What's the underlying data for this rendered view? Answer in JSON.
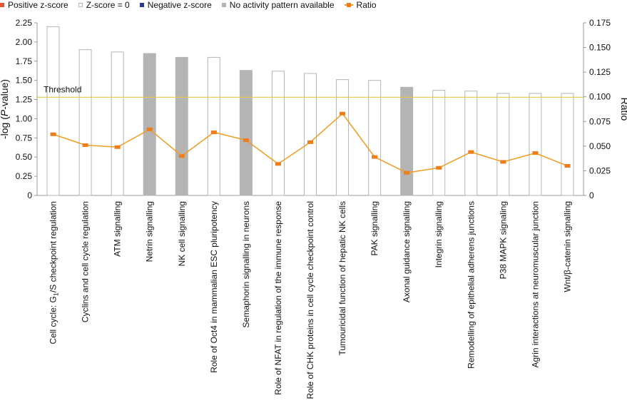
{
  "legend": {
    "positive": "Positive z-score",
    "zero": "Z-score = 0",
    "negative": "Negative z-score",
    "none": "No activity pattern available",
    "ratio": "Ratio"
  },
  "colors": {
    "positive": "#e8542c",
    "zero": "#ffffff",
    "negative": "#2b3a8f",
    "none": "#b4b4b4",
    "ratio": "#f39c1f",
    "threshold": "#e6c84a",
    "bar_border": "#b5b5b5"
  },
  "chart_data": {
    "type": "bar",
    "title": "",
    "ylabel": "-log (P-value)",
    "y2label": "Ratio",
    "ylim": [
      0,
      2.25
    ],
    "y2lim": [
      0,
      0.175
    ],
    "yticks": [
      "0",
      "0.25",
      "0.50",
      "0.75",
      "1.00",
      "1.25",
      "1.50",
      "1.75",
      "2.00",
      "2.25"
    ],
    "y2ticks": [
      "0",
      "0.025",
      "0.050",
      "0.075",
      "0.100",
      "0.125",
      "0.150",
      "0.175"
    ],
    "threshold": {
      "label": "Threshold",
      "value": 1.28
    },
    "categories": [
      "Cell cycle: G1/S checkpoint regulation",
      "Cyclins and cell cycle regulation",
      "ATM signalling",
      "Netrin signalling",
      "NK cell signalling",
      "Role of Oct4 in mammalian ESC pluripotency",
      "Semaphorin signalling in neurons",
      "Role of NFAT in regulation of the immune response",
      "Role of CHK proteins in cell cycle checkpoint control",
      "Tumouricidal function of hepatic NK cells",
      "PAK signalling",
      "Axonal guidance signalling",
      "Integrin signalling",
      "Remodelling of epithelial adherens junctions",
      "P38 MAPK signaling",
      "Agrin interactions at neuromuscular junction",
      "Wnt/β-catenin signalling"
    ],
    "series": [
      {
        "name": "-log (P-value)",
        "values": [
          2.2,
          1.9,
          1.87,
          1.85,
          1.8,
          1.8,
          1.63,
          1.62,
          1.59,
          1.51,
          1.5,
          1.41,
          1.37,
          1.36,
          1.33,
          1.33,
          1.33
        ],
        "activity": [
          "zero",
          "zero",
          "zero",
          "none",
          "none",
          "zero",
          "none",
          "zero",
          "zero",
          "zero",
          "zero",
          "none",
          "zero",
          "zero",
          "zero",
          "zero",
          "zero"
        ]
      },
      {
        "name": "Ratio",
        "values": [
          0.062,
          0.051,
          0.049,
          0.067,
          0.04,
          0.064,
          0.056,
          0.032,
          0.054,
          0.083,
          0.039,
          0.023,
          0.028,
          0.044,
          0.034,
          0.043,
          0.03
        ]
      }
    ]
  }
}
